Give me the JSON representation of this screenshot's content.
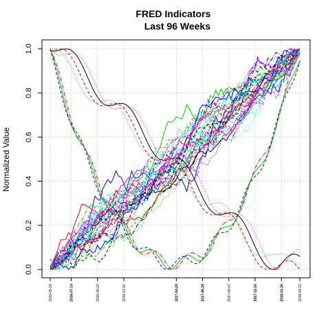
{
  "chart_data": {
    "type": "line",
    "title": "FRED Indicators",
    "subtitle": "Last 96 Weeks",
    "xlabel": "",
    "ylabel": "Normalized Value",
    "ylim": [
      0,
      1
    ],
    "yticks": [
      "0.0",
      "0.2",
      "0.4",
      "0.6",
      "0.8",
      "1.0"
    ],
    "xticks": [
      {
        "label": "2016-05-19",
        "bold": false
      },
      {
        "label": "2016-07-14",
        "bold": true
      },
      {
        "label": "2016-09-22",
        "bold": false
      },
      {
        "label": "2016-12-01",
        "bold": false
      },
      {
        "label": "2017-04-20",
        "bold": true
      },
      {
        "label": "2017-06-29",
        "bold": true
      },
      {
        "label": "2017-09-07",
        "bold": false
      },
      {
        "label": "2017-11-16",
        "bold": true
      },
      {
        "label": "2018-01-25",
        "bold": true
      },
      {
        "label": "2018-03-22",
        "bold": false
      }
    ],
    "grid": true,
    "series_count": 40,
    "x_weeks": 96
  }
}
